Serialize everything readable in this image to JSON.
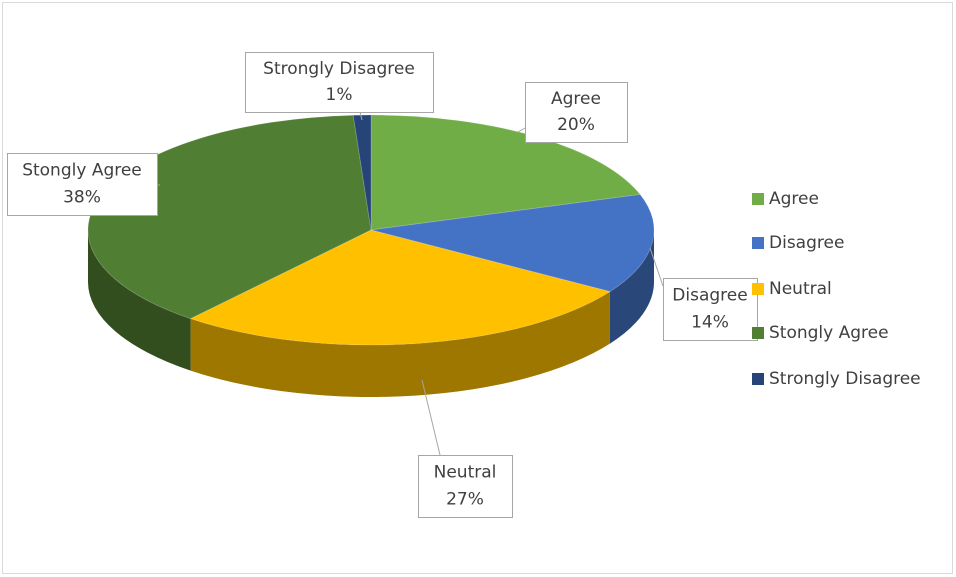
{
  "chart_data": {
    "type": "pie",
    "categories": [
      "Agree",
      "Disagree",
      "Neutral",
      "Stongly Agree",
      "Strongly Disagree"
    ],
    "values": [
      20,
      14,
      27,
      38,
      1
    ],
    "value_labels": [
      "20%",
      "14%",
      "27%",
      "38%",
      "1%"
    ],
    "colors": [
      "#70ad47",
      "#4472c4",
      "#ffc000",
      "#507e32",
      "#264478"
    ],
    "legend": "right"
  }
}
